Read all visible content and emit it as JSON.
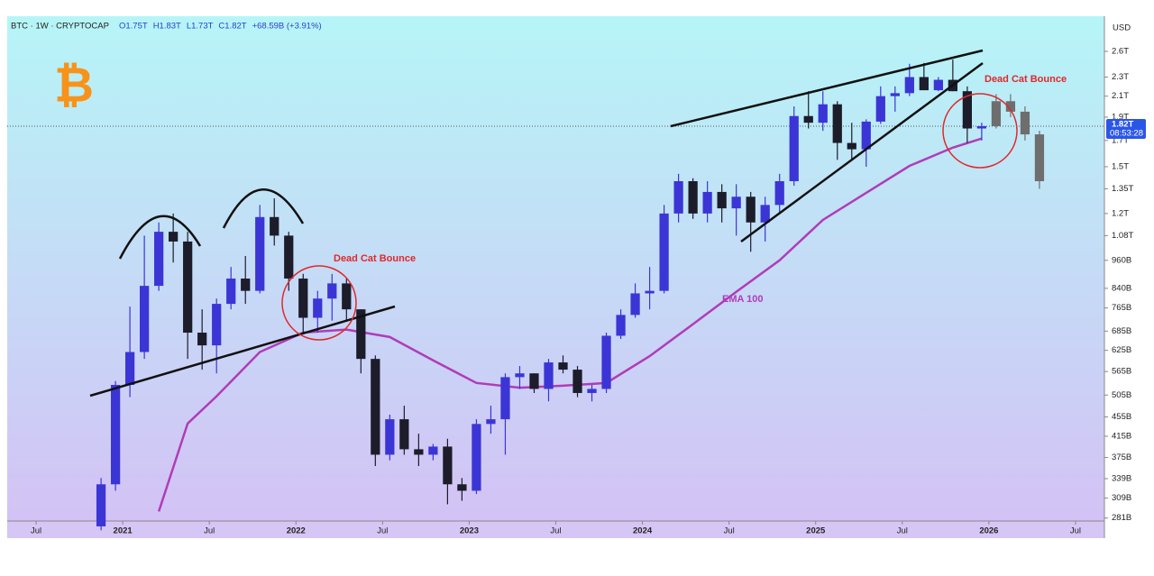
{
  "chart_data": {
    "type": "candlestick",
    "header": {
      "symbol": "BTC · 1W · CRYPTOCAP",
      "ohlc": [
        "O1.75T",
        "H1.83T",
        "L1.73T",
        "C1.82T",
        "+68.59B (+3.91%)"
      ]
    },
    "currency": "USD",
    "log_scale": true,
    "ylim": [
      277,
      3074
    ],
    "yticks": [
      {
        "value": 2600,
        "label": "2.6T"
      },
      {
        "value": 2300,
        "label": "2.3T"
      },
      {
        "value": 2100,
        "label": "2.1T"
      },
      {
        "value": 1900,
        "label": "1.9T"
      },
      {
        "value": 1700,
        "label": "1.7T"
      },
      {
        "value": 1500,
        "label": "1.5T"
      },
      {
        "value": 1350,
        "label": "1.35T"
      },
      {
        "value": 1200,
        "label": "1.2T"
      },
      {
        "value": 1080,
        "label": "1.08T"
      },
      {
        "value": 960,
        "label": "960B"
      },
      {
        "value": 840,
        "label": "840B"
      },
      {
        "value": 765,
        "label": "765B"
      },
      {
        "value": 685,
        "label": "685B"
      },
      {
        "value": 625,
        "label": "625B"
      },
      {
        "value": 565,
        "label": "565B"
      },
      {
        "value": 505,
        "label": "505B"
      },
      {
        "value": 455,
        "label": "455B"
      },
      {
        "value": 415,
        "label": "415B"
      },
      {
        "value": 375,
        "label": "375B"
      },
      {
        "value": 339,
        "label": "339B"
      },
      {
        "value": 309,
        "label": "309B"
      },
      {
        "value": 281,
        "label": "281B"
      }
    ],
    "xlim": [
      "2020-05",
      "2026-09"
    ],
    "xticks": [
      {
        "value": "2020-07",
        "label": "Jul"
      },
      {
        "value": "2021-01",
        "label": "2021"
      },
      {
        "value": "2021-07",
        "label": "Jul"
      },
      {
        "value": "2022-01",
        "label": "2022"
      },
      {
        "value": "2022-07",
        "label": "Jul"
      },
      {
        "value": "2023-01",
        "label": "2023"
      },
      {
        "value": "2023-07",
        "label": "Jul"
      },
      {
        "value": "2024-01",
        "label": "2024"
      },
      {
        "value": "2024-07",
        "label": "Jul"
      },
      {
        "value": "2025-01",
        "label": "2025"
      },
      {
        "value": "2025-07",
        "label": "Jul"
      },
      {
        "value": "2026-01",
        "label": "2026"
      },
      {
        "value": "2026-07",
        "label": "Jul"
      }
    ],
    "candles": {
      "color_up": "#3b35d6",
      "color_down": "#1c1c2a",
      "x": [
        "2020-11",
        "2020-12",
        "2021-01",
        "2021-02",
        "2021-03",
        "2021-04",
        "2021-05",
        "2021-06",
        "2021-07",
        "2021-08",
        "2021-09",
        "2021-10",
        "2021-11",
        "2021-12",
        "2022-01",
        "2022-02",
        "2022-03",
        "2022-04",
        "2022-05",
        "2022-06",
        "2022-07",
        "2022-08",
        "2022-09",
        "2022-10",
        "2022-11",
        "2022-12",
        "2023-01",
        "2023-02",
        "2023-03",
        "2023-04",
        "2023-05",
        "2023-06",
        "2023-07",
        "2023-08",
        "2023-09",
        "2023-10",
        "2023-11",
        "2023-12",
        "2024-01",
        "2024-02",
        "2024-03",
        "2024-04",
        "2024-05",
        "2024-06",
        "2024-07",
        "2024-08",
        "2024-09",
        "2024-10",
        "2024-11",
        "2024-12",
        "2025-01",
        "2025-02",
        "2025-03",
        "2025-04",
        "2025-05",
        "2025-06",
        "2025-07",
        "2025-08",
        "2025-09",
        "2025-10",
        "2025-11",
        "2025-12"
      ],
      "open": [
        270,
        330,
        530,
        620,
        850,
        1100,
        1050,
        680,
        640,
        780,
        880,
        830,
        1180,
        1080,
        880,
        730,
        800,
        860,
        760,
        600,
        380,
        450,
        390,
        380,
        395,
        330,
        320,
        440,
        450,
        550,
        560,
        520,
        590,
        570,
        510,
        520,
        670,
        740,
        820,
        830,
        1200,
        1400,
        1200,
        1330,
        1230,
        1300,
        1150,
        1250,
        1400,
        1910,
        1850,
        2020,
        1680,
        1630,
        1860,
        2100,
        2130,
        2300,
        2160,
        2270,
        2150,
        1800
      ],
      "high": [
        340,
        540,
        770,
        1080,
        1150,
        1200,
        1100,
        760,
        800,
        930,
        980,
        1250,
        1290,
        1100,
        900,
        830,
        900,
        880,
        760,
        610,
        460,
        480,
        420,
        400,
        410,
        340,
        450,
        480,
        560,
        580,
        560,
        600,
        610,
        580,
        530,
        680,
        760,
        860,
        930,
        1250,
        1450,
        1420,
        1400,
        1380,
        1380,
        1330,
        1300,
        1450,
        2000,
        2150,
        2150,
        2050,
        1850,
        1880,
        2200,
        2200,
        2450,
        2460,
        2300,
        2500,
        2200,
        1850
      ],
      "low": [
        265,
        320,
        500,
        600,
        830,
        950,
        600,
        570,
        560,
        760,
        780,
        820,
        1030,
        830,
        680,
        680,
        720,
        720,
        560,
        360,
        370,
        380,
        360,
        370,
        300,
        305,
        315,
        420,
        380,
        520,
        510,
        490,
        560,
        500,
        490,
        510,
        660,
        730,
        760,
        820,
        1150,
        1170,
        1150,
        1150,
        1080,
        1000,
        1050,
        1200,
        1370,
        1800,
        1780,
        1550,
        1550,
        1500,
        1840,
        1950,
        2100,
        2180,
        2150,
        2150,
        1680,
        1700
      ],
      "close": [
        330,
        530,
        620,
        850,
        1100,
        1050,
        680,
        640,
        780,
        880,
        830,
        1180,
        1080,
        880,
        730,
        800,
        860,
        760,
        600,
        380,
        450,
        390,
        380,
        395,
        330,
        320,
        440,
        450,
        550,
        560,
        520,
        590,
        570,
        510,
        520,
        670,
        740,
        820,
        830,
        1200,
        1400,
        1200,
        1330,
        1230,
        1300,
        1150,
        1250,
        1400,
        1910,
        1850,
        2020,
        1680,
        1630,
        1860,
        2100,
        2130,
        2300,
        2160,
        2270,
        2150,
        1800,
        1820
      ]
    },
    "projection": {
      "color": "#6e6e6e",
      "x": [
        "2026-01",
        "2026-02",
        "2026-03",
        "2026-04"
      ],
      "open": [
        1820,
        2050,
        1950,
        1750
      ],
      "high": [
        2120,
        2120,
        2000,
        1780
      ],
      "low": [
        1800,
        1900,
        1700,
        1350
      ],
      "close": [
        2050,
        1950,
        1750,
        1400
      ]
    },
    "ema": {
      "label": "EMA 100",
      "color": "#b03cb8",
      "x": [
        "2021-03",
        "2021-05",
        "2021-07",
        "2021-10",
        "2022-01",
        "2022-04",
        "2022-07",
        "2022-10",
        "2023-01",
        "2023-04",
        "2023-07",
        "2023-10",
        "2024-01",
        "2024-04",
        "2024-07",
        "2024-10",
        "2025-01",
        "2025-04",
        "2025-07",
        "2025-10",
        "2025-12"
      ],
      "values": [
        290,
        441,
        502,
        620,
        680,
        690,
        666,
        596,
        535,
        523,
        528,
        535,
        608,
        708,
        826,
        960,
        1164,
        1324,
        1506,
        1643,
        1716
      ]
    },
    "last_price": {
      "value": 1820,
      "label": "1.82T",
      "countdown": "08:53:28"
    },
    "annotations": [
      "Dead Cat Bounce",
      "Dead Cat Bounce"
    ]
  }
}
